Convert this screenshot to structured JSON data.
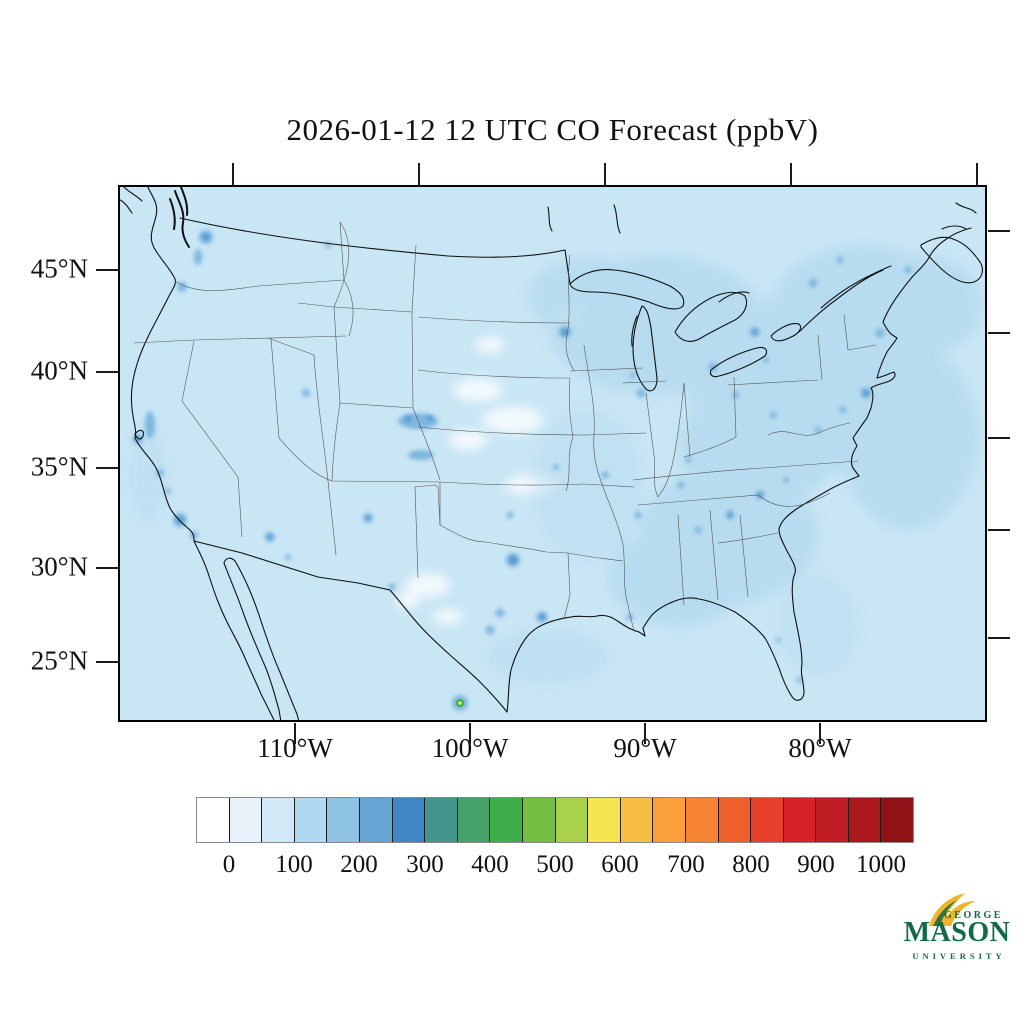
{
  "title": "2026-01-12 12 UTC CO Forecast (ppbV)",
  "map": {
    "lat_labels": [
      "45°N",
      "40°N",
      "35°N",
      "30°N",
      "25°N"
    ],
    "lon_labels": [
      "110°W",
      "100°W",
      "90°W",
      "80°W"
    ],
    "palette": {
      "base_fill": "#c9e6f5",
      "haze_fill": "#b4daee",
      "urban_spot": "#7eb6e0",
      "urban_spot_core": "#4a8fc6",
      "hotspot_ring_green": "#3fae49",
      "hotspot_core_yellow": "#f2e34c",
      "coastline": "#101010",
      "state_border": "#555555"
    }
  },
  "colorbar": {
    "tick_labels": [
      "0",
      "100",
      "200",
      "300",
      "400",
      "500",
      "600",
      "700",
      "800",
      "900",
      "1000"
    ],
    "value_per_cell": 50,
    "colors": [
      "#ffffff",
      "#e7f2fb",
      "#d2e8f7",
      "#aed9f0",
      "#8dc2e3",
      "#66a4d4",
      "#4186c4",
      "#43968e",
      "#44a16a",
      "#3dae49",
      "#72bf44",
      "#aad14b",
      "#f4e54e",
      "#f7bd44",
      "#f9a03a",
      "#f5832f",
      "#ee5f2b",
      "#e6402a",
      "#d52127",
      "#bf1d23",
      "#aa181d",
      "#8e1216"
    ]
  },
  "logo": {
    "line1": "GEORGE",
    "line2": "MASON",
    "line3": "UNIVERSITY",
    "green": "#0f6b44",
    "gold": "#f0b429"
  },
  "chart_data": {
    "type": "heatmap",
    "title": "2026-01-12 12 UTC CO Forecast (ppbV)",
    "x_ticks": [
      "110°W",
      "100°W",
      "90°W",
      "80°W"
    ],
    "y_ticks": [
      "45°N",
      "40°N",
      "35°N",
      "30°N",
      "25°N"
    ],
    "colorbar_ticks": [
      0,
      100,
      200,
      300,
      400,
      500,
      600,
      700,
      800,
      900,
      1000
    ],
    "colorbar_cells": 22,
    "units": "ppbV",
    "field_summary": "CO mostly 50-100 ppbV (light blue) across CONUS; slightly higher (100-150) haze over Northeast, Great Lakes and Southeast; urban hotspots 150-250 ppbV (Seattle, LA, Phoenix, Denver, Dallas, Minneapolis, NYC); one ~550-650 ppbV hotspot near Monterrey, Mexico"
  }
}
